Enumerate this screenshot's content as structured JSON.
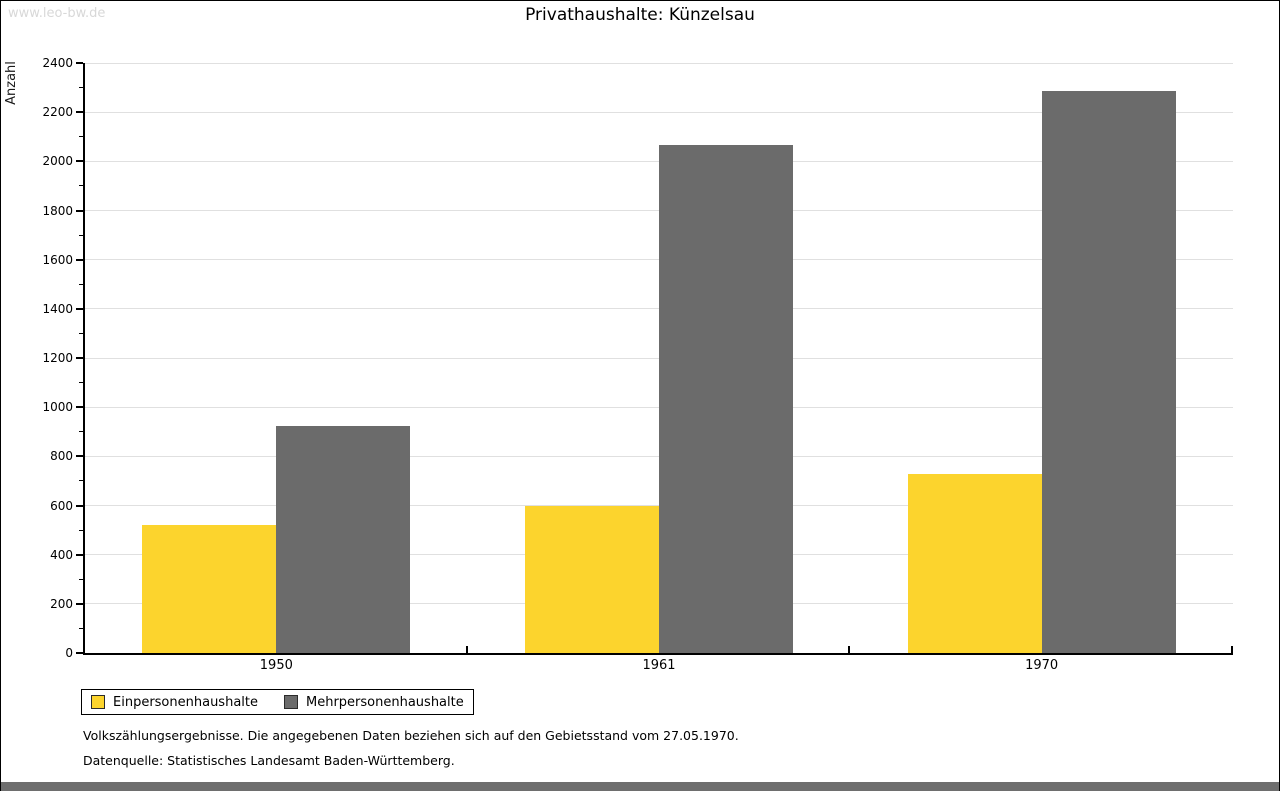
{
  "watermark": "www.leo-bw.de",
  "chart_data": {
    "type": "bar",
    "title": "Privathaushalte: Künzelsau",
    "categories": [
      "1950",
      "1961",
      "1970"
    ],
    "series": [
      {
        "name": "Einpersonenhaushalte",
        "color": "#fcd42d",
        "values": [
          520,
          600,
          730
        ]
      },
      {
        "name": "Mehrpersonenhaushalte",
        "color": "#6b6b6b",
        "values": [
          925,
          2065,
          2285
        ]
      }
    ],
    "xlabel": "",
    "ylabel": "Anzahl",
    "ylim": [
      0,
      2400
    ],
    "ytick_step": 200,
    "yminor_step": 100,
    "grid": true,
    "gridline_color": "#e0e0e0",
    "legend_position": "bottom-left"
  },
  "footer": {
    "line1": "Volkszählungsergebnisse. Die angegebenen Daten beziehen sich auf den Gebietsstand vom 27.05.1970.",
    "line2": "Datenquelle: Statistisches Landesamt Baden-Württemberg."
  }
}
